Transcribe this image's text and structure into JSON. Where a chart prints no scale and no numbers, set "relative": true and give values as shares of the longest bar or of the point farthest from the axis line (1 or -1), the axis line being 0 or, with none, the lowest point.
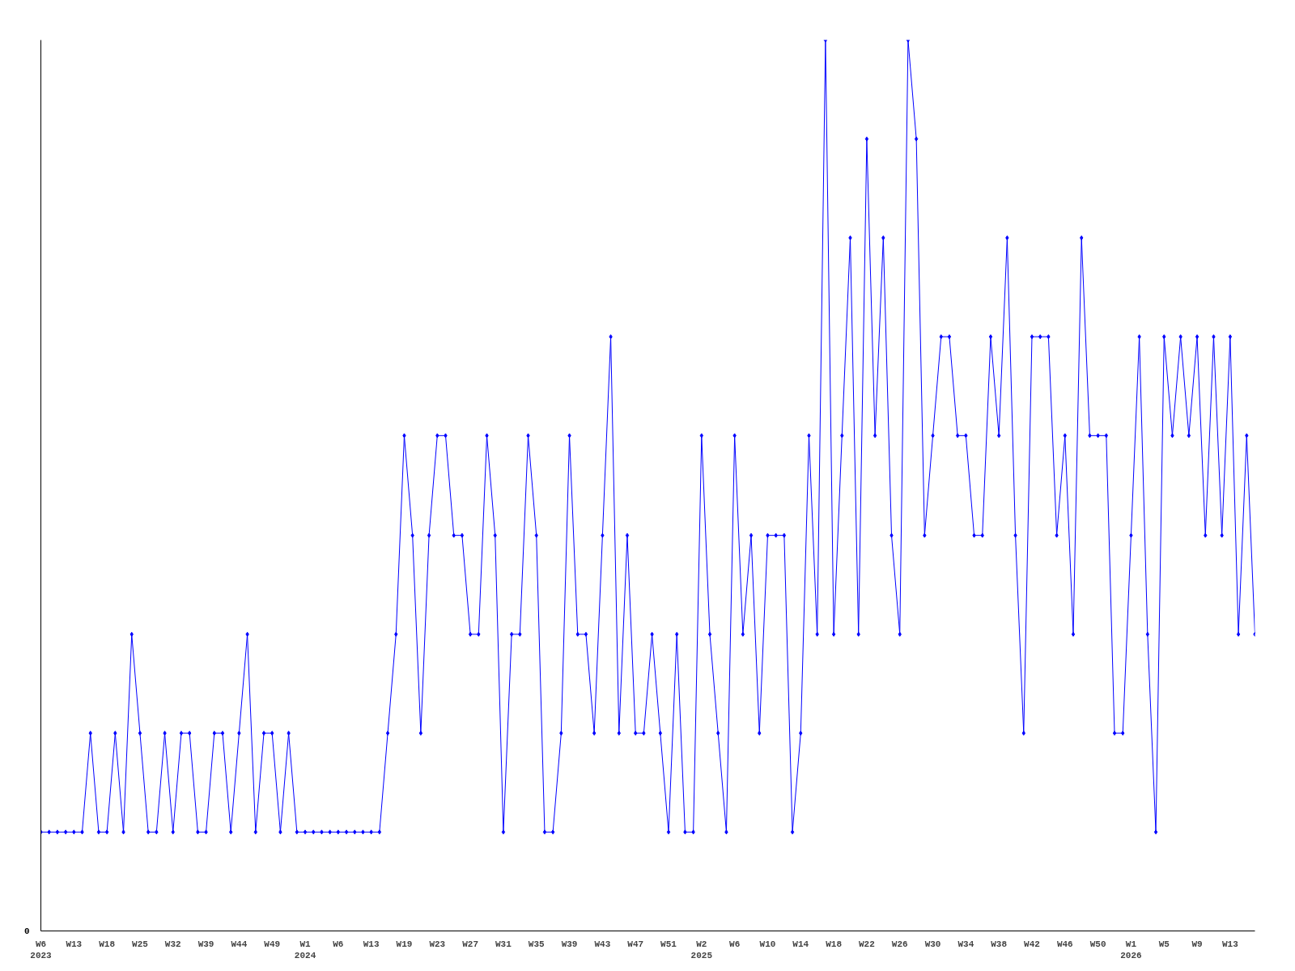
{
  "chart_data": {
    "type": "line",
    "relative": true,
    "color": "#0000ff",
    "marker": "diamond",
    "line_style": "solid",
    "grid": false,
    "tick_labels": "x",
    "annotations": [
      "0"
    ],
    "categories": [
      "W6\n2023",
      null,
      null,
      null,
      "W13",
      null,
      null,
      null,
      "W18",
      null,
      null,
      null,
      "W25",
      null,
      null,
      null,
      "W32",
      null,
      null,
      null,
      "W39",
      null,
      null,
      null,
      "W44",
      null,
      null,
      null,
      "W49",
      null,
      null,
      null,
      "W1\n2024",
      null,
      null,
      null,
      "W6",
      null,
      null,
      null,
      "W13",
      null,
      null,
      null,
      "W19",
      null,
      null,
      null,
      "W23",
      null,
      null,
      null,
      "W27",
      null,
      null,
      null,
      "W31",
      null,
      null,
      null,
      "W35",
      null,
      null,
      null,
      "W39",
      null,
      null,
      null,
      "W43",
      null,
      null,
      null,
      "W47",
      null,
      null,
      null,
      "W51",
      null,
      null,
      null,
      "W2\n2025",
      null,
      null,
      null,
      "W6",
      null,
      null,
      null,
      "W10",
      null,
      null,
      null,
      "W14",
      null,
      null,
      null,
      "W18",
      null,
      null,
      null,
      "W22",
      null,
      null,
      null,
      "W26",
      null,
      null,
      null,
      "W30",
      null,
      null,
      null,
      "W34",
      null,
      null,
      null,
      "W38",
      null,
      null,
      null,
      "W42",
      null,
      null,
      null,
      "W46",
      null,
      null,
      null,
      "W50",
      null,
      null,
      null,
      "W1\n2026",
      null,
      null,
      null,
      "W5",
      null,
      null,
      null,
      "W9",
      null,
      null,
      null,
      "W13",
      null,
      null,
      null
    ],
    "values": [
      0.111,
      0.111,
      0.111,
      0.111,
      0.111,
      0.111,
      0.222,
      0.111,
      0.111,
      0.222,
      0.111,
      0.333,
      0.222,
      0.111,
      0.111,
      0.222,
      0.111,
      0.222,
      0.222,
      0.111,
      0.111,
      0.222,
      0.222,
      0.111,
      0.222,
      0.333,
      0.111,
      0.222,
      0.222,
      0.111,
      0.222,
      0.111,
      0.111,
      0.111,
      0.111,
      0.111,
      0.111,
      0.111,
      0.111,
      0.111,
      0.111,
      0.111,
      0.222,
      0.333,
      0.556,
      0.444,
      0.222,
      0.444,
      0.556,
      0.556,
      0.444,
      0.444,
      0.333,
      0.333,
      0.556,
      0.444,
      0.111,
      0.333,
      0.333,
      0.556,
      0.444,
      0.111,
      0.111,
      0.222,
      0.556,
      0.333,
      0.333,
      0.222,
      0.444,
      0.667,
      0.222,
      0.444,
      0.222,
      0.222,
      0.333,
      0.222,
      0.111,
      0.333,
      0.111,
      0.111,
      0.556,
      0.333,
      0.222,
      0.111,
      0.556,
      0.333,
      0.444,
      0.222,
      0.444,
      0.444,
      0.444,
      0.111,
      0.222,
      0.556,
      0.333,
      1,
      0.333,
      0.556,
      0.778,
      0.333,
      0.889,
      0.556,
      0.778,
      0.444,
      0.333,
      1,
      0.889,
      0.444,
      0.556,
      0.667,
      0.667,
      0.556,
      0.556,
      0.444,
      0.444,
      0.667,
      0.556,
      0.778,
      0.444,
      0.222,
      0.667,
      0.667,
      0.667,
      0.444,
      0.556,
      0.333,
      0.778,
      0.556,
      0.556,
      0.556,
      0.222,
      0.222,
      0.444,
      0.667,
      0.333,
      0.111,
      0.667,
      0.556,
      0.667,
      0.556,
      0.667,
      0.444,
      0.667,
      0.444,
      0.667,
      0.333,
      0.556,
      0.333
    ]
  }
}
